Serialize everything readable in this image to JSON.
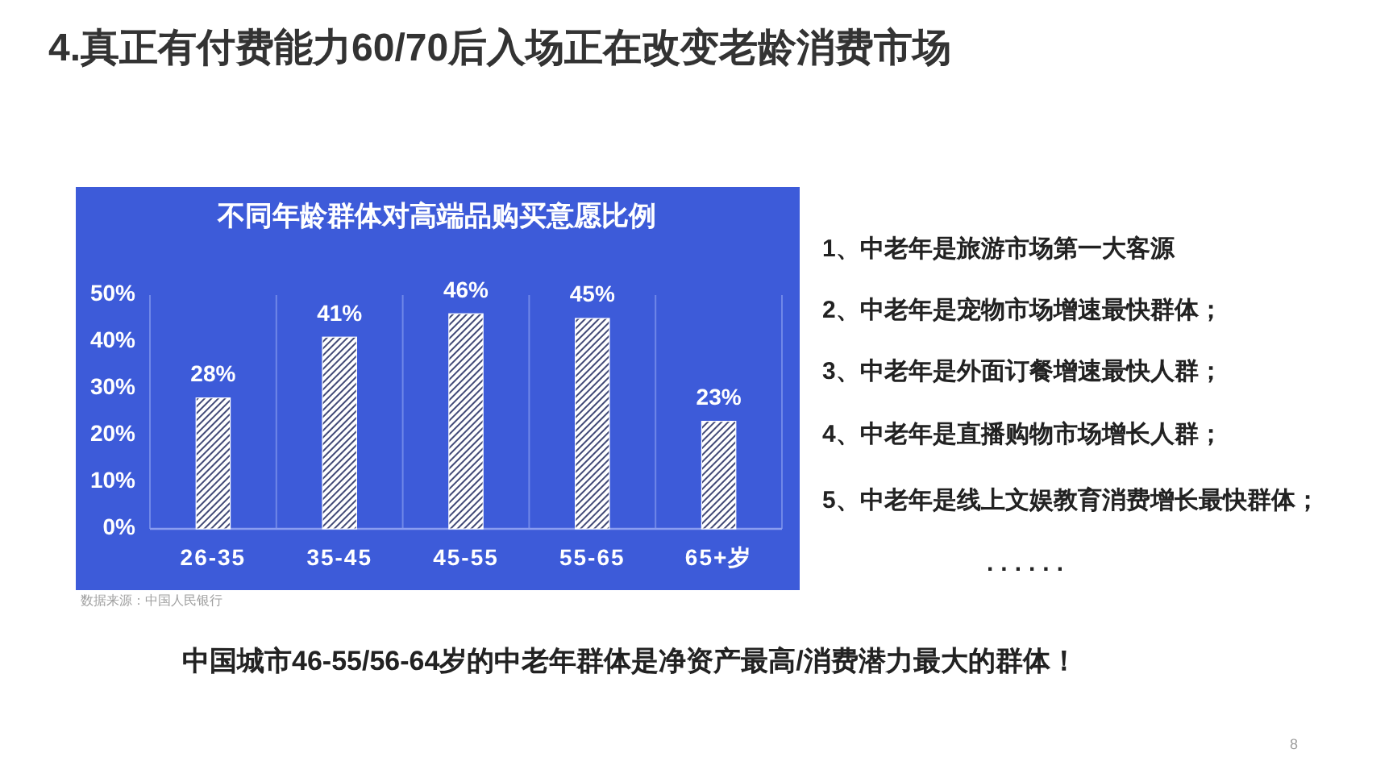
{
  "chart_data": {
    "type": "bar",
    "title": "4.真正有付费能力60/70后入场正在改变老龄消费市场",
    "subtitle": "不同年龄群体对高端品购买意愿比例",
    "categories": [
      "26-35",
      "35-45",
      "45-55",
      "55-65",
      "65+岁"
    ],
    "values": [
      28,
      41,
      46,
      45,
      23
    ],
    "value_labels": [
      "28%",
      "41%",
      "46%",
      "45%",
      "23%"
    ],
    "color": "#ffffff",
    "ylim": [
      0,
      50
    ],
    "yticks": [
      {
        "value": 0,
        "label": "0%"
      },
      {
        "value": 10,
        "label": "10%"
      },
      {
        "value": 20,
        "label": "20%"
      },
      {
        "value": 30,
        "label": "30%"
      },
      {
        "value": 40,
        "label": "40%"
      },
      {
        "value": 50,
        "label": "50%"
      }
    ],
    "grid": "x",
    "annotations": [
      "1、中老年是旅游市场第一大客源",
      "2、中老年是宠物市场增速最快群体；",
      "3、中老年是外面订餐增速最快人群；",
      "4、中老年是直播购物市场增长人群；",
      "5、中老年是线上文娱教育消费增长最快群体；",
      "......",
      "中国城市46-55/56-64岁的中老年群体是净资产最高/消费潜力最大的群体！",
      "数据来源：中国人民银行",
      "8"
    ]
  }
}
